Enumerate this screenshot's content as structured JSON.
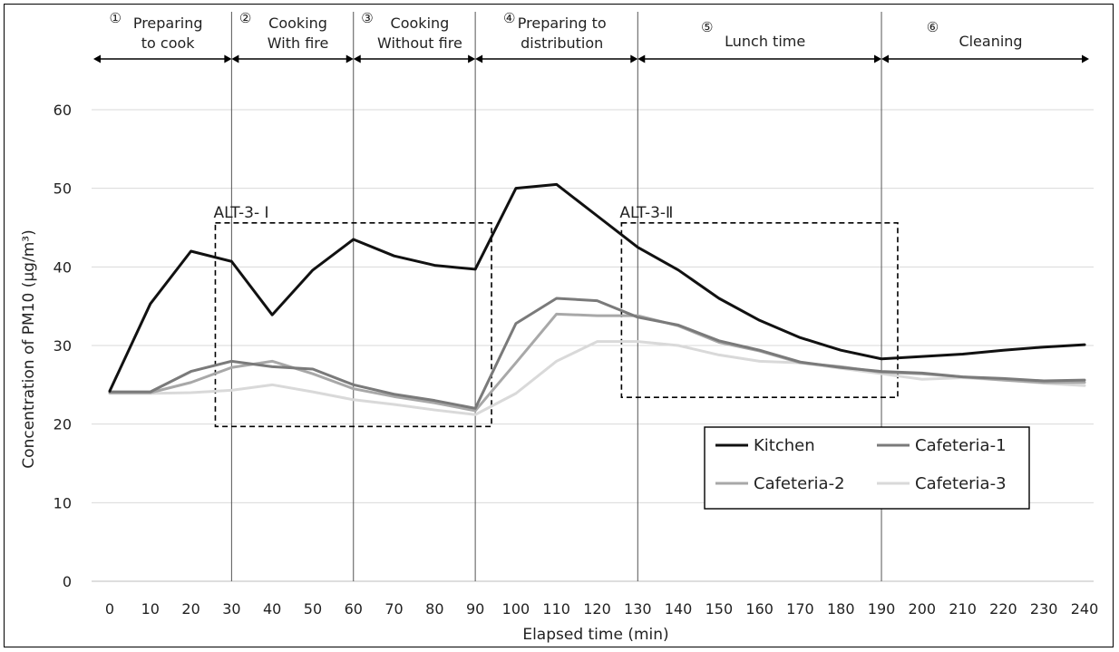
{
  "chart_data": {
    "type": "line",
    "xlabel": "Elapsed time (min)",
    "ylabel": "Concentration of PM10 (μg/m³)",
    "x": [
      0,
      10,
      20,
      30,
      40,
      50,
      60,
      70,
      80,
      90,
      100,
      110,
      120,
      130,
      140,
      150,
      160,
      170,
      180,
      190,
      200,
      210,
      220,
      230,
      240
    ],
    "ylim": [
      0,
      60
    ],
    "yticks": [
      0,
      10,
      20,
      30,
      40,
      50,
      60
    ],
    "grid": true,
    "legend_position": "lower-right",
    "series": [
      {
        "name": "Kitchen",
        "color": "#111111",
        "values": [
          24.2,
          35.3,
          42.0,
          40.7,
          33.9,
          39.6,
          43.5,
          41.4,
          40.2,
          39.7,
          50.0,
          50.5,
          46.5,
          42.5,
          39.6,
          36.0,
          33.2,
          31.0,
          29.4,
          28.3,
          28.6,
          28.9,
          29.4,
          29.8,
          30.1
        ]
      },
      {
        "name": "Cafeteria-1",
        "color": "#7a7a7a",
        "values": [
          24.1,
          24.1,
          26.7,
          28.0,
          27.3,
          27.0,
          25.0,
          23.8,
          23.0,
          22.0,
          32.8,
          36.0,
          35.7,
          33.6,
          32.6,
          30.6,
          29.4,
          27.9,
          27.2,
          26.7,
          26.5,
          26.0,
          25.8,
          25.5,
          25.6
        ]
      },
      {
        "name": "Cafeteria-2",
        "color": "#a8a8a8",
        "values": [
          24.0,
          24.0,
          25.3,
          27.2,
          28.0,
          26.4,
          24.5,
          23.5,
          22.7,
          21.7,
          27.8,
          34.0,
          33.8,
          33.8,
          32.5,
          30.4,
          29.3,
          27.8,
          27.3,
          26.6,
          26.4,
          26.0,
          25.6,
          25.3,
          25.3
        ]
      },
      {
        "name": "Cafeteria-3",
        "color": "#d9d9d9",
        "values": [
          23.9,
          23.9,
          24.0,
          24.3,
          25.0,
          24.1,
          23.1,
          22.5,
          21.8,
          21.2,
          23.9,
          28.0,
          30.5,
          30.5,
          30.0,
          28.8,
          28.0,
          27.8,
          27.1,
          26.4,
          25.7,
          25.9,
          25.6,
          25.2,
          24.9
        ]
      }
    ],
    "phases": [
      {
        "num": "①",
        "lines": [
          "Preparing",
          "to cook"
        ],
        "start": 0,
        "end": 30
      },
      {
        "num": "②",
        "lines": [
          "Cooking",
          "With fire"
        ],
        "start": 30,
        "end": 60
      },
      {
        "num": "③",
        "lines": [
          "Cooking",
          "Without fire"
        ],
        "start": 60,
        "end": 90
      },
      {
        "num": "④",
        "lines": [
          "Preparing to",
          "distribution"
        ],
        "start": 90,
        "end": 130
      },
      {
        "num": "⑤",
        "lines": [
          "Lunch time"
        ],
        "start": 130,
        "end": 190
      },
      {
        "num": "⑥",
        "lines": [
          "Cleaning"
        ],
        "start": 190,
        "end": 240
      }
    ],
    "boxes": [
      {
        "label": "ALT-3- Ⅰ",
        "x0": 26,
        "x1": 94,
        "y0": 19.7,
        "y1": 45.6
      },
      {
        "label": "ALT-3-Ⅱ",
        "x0": 126,
        "x1": 194,
        "y0": 23.4,
        "y1": 45.6
      }
    ]
  }
}
